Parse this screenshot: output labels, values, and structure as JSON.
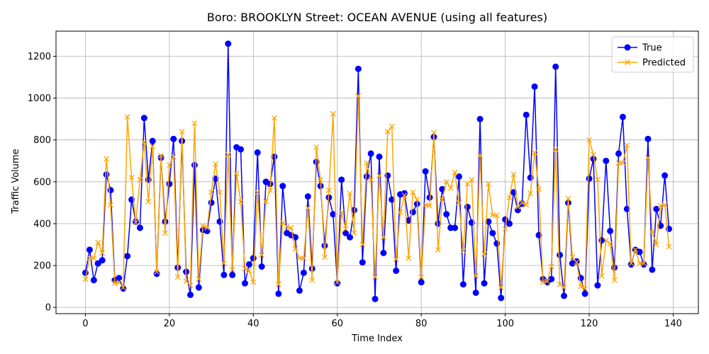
{
  "chart_data": {
    "type": "line",
    "title": "Boro: BROOKLYN Street: OCEAN AVENUE (using all features)",
    "xlabel": "Time Index",
    "ylabel": "Traffic Volume",
    "xlim": [
      -7,
      146
    ],
    "ylim": [
      -30,
      1320
    ],
    "xticks": [
      0,
      20,
      40,
      60,
      80,
      100,
      120,
      140
    ],
    "yticks": [
      0,
      200,
      400,
      600,
      800,
      1000,
      1200
    ],
    "grid": true,
    "legend_position": "top-right",
    "x": [
      0,
      1,
      2,
      3,
      4,
      5,
      6,
      7,
      8,
      9,
      10,
      11,
      12,
      13,
      14,
      15,
      16,
      17,
      18,
      19,
      20,
      21,
      22,
      23,
      24,
      25,
      26,
      27,
      28,
      29,
      30,
      31,
      32,
      33,
      34,
      35,
      36,
      37,
      38,
      39,
      40,
      41,
      42,
      43,
      44,
      45,
      46,
      47,
      48,
      49,
      50,
      51,
      52,
      53,
      54,
      55,
      56,
      57,
      58,
      59,
      60,
      61,
      62,
      63,
      64,
      65,
      66,
      67,
      68,
      69,
      70,
      71,
      72,
      73,
      74,
      75,
      76,
      77,
      78,
      79,
      80,
      81,
      82,
      83,
      84,
      85,
      86,
      87,
      88,
      89,
      90,
      91,
      92,
      93,
      94,
      95,
      96,
      97,
      98,
      99,
      100,
      101,
      102,
      103,
      104,
      105,
      106,
      107,
      108,
      109,
      110,
      111,
      112,
      113,
      114,
      115,
      116,
      117,
      118,
      119,
      120,
      121,
      122,
      123,
      124,
      125,
      126,
      127,
      128,
      129,
      130,
      131,
      132,
      133,
      134,
      135,
      136,
      137,
      138,
      139
    ],
    "series": [
      {
        "name": "True",
        "color": "#0000ff",
        "marker": "circle",
        "values": [
          165,
          275,
          130,
          210,
          225,
          635,
          560,
          130,
          140,
          90,
          245,
          515,
          410,
          380,
          905,
          610,
          795,
          160,
          715,
          410,
          590,
          805,
          190,
          795,
          170,
          60,
          680,
          95,
          370,
          365,
          500,
          615,
          410,
          155,
          1260,
          155,
          765,
          755,
          115,
          205,
          235,
          740,
          195,
          600,
          590,
          720,
          65,
          580,
          355,
          345,
          335,
          80,
          165,
          530,
          185,
          695,
          580,
          295,
          525,
          445,
          115,
          610,
          355,
          335,
          465,
          1140,
          215,
          625,
          735,
          40,
          720,
          260,
          630,
          515,
          175,
          540,
          545,
          415,
          455,
          495,
          120,
          650,
          525,
          815,
          400,
          565,
          445,
          380,
          380,
          625,
          110,
          480,
          405,
          70,
          900,
          115,
          410,
          355,
          305,
          45,
          420,
          400,
          550,
          465,
          495,
          920,
          620,
          1055,
          345,
          135,
          120,
          135,
          1150,
          250,
          55,
          500,
          210,
          220,
          140,
          65,
          615,
          710,
          105,
          320,
          700,
          365,
          190,
          735,
          910,
          470,
          205,
          275,
          265,
          205,
          805,
          180,
          470,
          390,
          630,
          375
        ]
      },
      {
        "name": "Predicted",
        "color": "#ffa500",
        "marker": "x",
        "values": [
          135,
          235,
          235,
          310,
          260,
          710,
          490,
          115,
          120,
          95,
          910,
          620,
          405,
          610,
          790,
          505,
          770,
          170,
          725,
          355,
          680,
          720,
          145,
          840,
          125,
          105,
          880,
          135,
          390,
          380,
          550,
          685,
          550,
          210,
          730,
          180,
          640,
          505,
          185,
          175,
          120,
          550,
          250,
          505,
          560,
          905,
          110,
          405,
          385,
          380,
          280,
          235,
          235,
          475,
          130,
          765,
          610,
          240,
          560,
          925,
          120,
          455,
          375,
          545,
          355,
          1010,
          300,
          690,
          610,
          145,
          630,
          335,
          840,
          865,
          230,
          455,
          535,
          235,
          550,
          515,
          145,
          490,
          485,
          835,
          275,
          515,
          600,
          570,
          645,
          500,
          270,
          590,
          610,
          150,
          725,
          255,
          590,
          440,
          440,
          95,
          375,
          525,
          635,
          480,
          500,
          490,
          545,
          740,
          565,
          120,
          125,
          195,
          755,
          110,
          95,
          520,
          240,
          215,
          100,
          90,
          800,
          730,
          610,
          150,
          320,
          305,
          130,
          690,
          690,
          775,
          210,
          275,
          210,
          210,
          715,
          360,
          300,
          485,
          490,
          290
        ]
      }
    ]
  }
}
